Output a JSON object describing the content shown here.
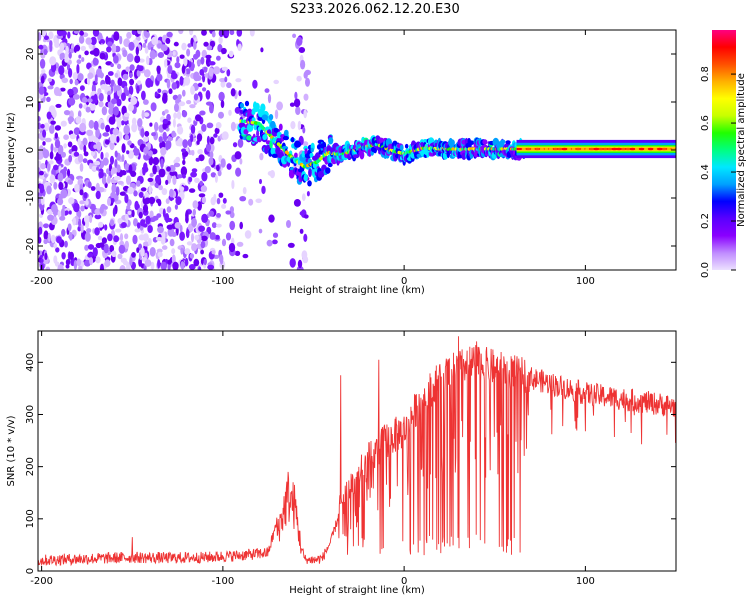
{
  "title": "S233.2026.062.12.20.E30",
  "chart_data": [
    {
      "type": "heatmap",
      "name": "spectrogram",
      "xlabel": "Height of straight line (km)",
      "ylabel": "Frequency (Hz)",
      "xlim": [
        -202,
        150
      ],
      "ylim": [
        -25,
        25
      ],
      "xticks": [
        "-200",
        "-100",
        "0",
        "100"
      ],
      "xtick_values": [
        -200,
        -100,
        0,
        100
      ],
      "yticks": [
        "-20",
        "-10",
        "0",
        "10",
        "20"
      ],
      "ytick_values": [
        -20,
        -10,
        0,
        10,
        20
      ],
      "colorbar": {
        "label": "Normalized spectral amplitude",
        "range": [
          0,
          0.98
        ],
        "ticks": [
          "0.0",
          "0.2",
          "0.4",
          "0.6",
          "0.8"
        ],
        "tick_values": [
          0.0,
          0.2,
          0.4,
          0.6,
          0.8
        ],
        "colors": [
          "#ece0ff",
          "#c08cff",
          "#8a00ff",
          "#5a00ff",
          "#0000ff",
          "#00a0ff",
          "#00e8ff",
          "#00ff80",
          "#20ff00",
          "#c8ff00",
          "#ffff00",
          "#ffb000",
          "#ff5000",
          "#ff0000",
          "#ff0080"
        ]
      },
      "signal_ridge": {
        "x": [
          -88,
          -80,
          -70,
          -62,
          -55,
          -48,
          -42,
          -35,
          -25,
          -15,
          -8,
          0,
          10,
          25,
          40,
          65,
          150
        ],
        "y": [
          6,
          5.5,
          1.5,
          -1.5,
          -3.5,
          -2.5,
          -0.5,
          -1.0,
          0.3,
          1.2,
          0.0,
          -0.8,
          0.4,
          0.2,
          0.2,
          0.2,
          0.2
        ]
      }
    },
    {
      "type": "line",
      "name": "snr",
      "xlabel": "Height of straight line (km)",
      "ylabel": "SNR (10 * v/v)",
      "xlim": [
        -202,
        150
      ],
      "ylim": [
        0,
        460
      ],
      "xticks": [
        "-200",
        "-100",
        "0",
        "100"
      ],
      "xtick_values": [
        -200,
        -100,
        0,
        100
      ],
      "yticks": [
        "0",
        "100",
        "200",
        "300",
        "400"
      ],
      "ytick_values": [
        0,
        100,
        200,
        300,
        400
      ],
      "series": [
        {
          "name": "SNR",
          "color": "#ee3333",
          "x": [
            -202,
            -190,
            -170,
            -150,
            -130,
            -110,
            -90,
            -75,
            -68,
            -64,
            -60,
            -57,
            -55,
            -50,
            -45,
            -40,
            -35,
            -30,
            -25,
            -20,
            -15,
            -10,
            -5,
            0,
            5,
            10,
            15,
            20,
            25,
            30,
            35,
            40,
            45,
            50,
            55,
            60,
            65,
            70,
            80,
            90,
            100,
            110,
            120,
            130,
            140,
            150
          ],
          "values": [
            20,
            22,
            24,
            26,
            25,
            26,
            30,
            35,
            120,
            180,
            150,
            60,
            30,
            20,
            25,
            60,
            120,
            160,
            180,
            210,
            230,
            250,
            260,
            270,
            300,
            330,
            350,
            370,
            380,
            390,
            395,
            400,
            395,
            390,
            385,
            380,
            375,
            370,
            360,
            350,
            340,
            335,
            330,
            325,
            320,
            315
          ]
        }
      ],
      "peaks": [
        {
          "x": -150,
          "y": 65
        },
        {
          "x": -35,
          "y": 375
        },
        {
          "x": -14,
          "y": 405
        },
        {
          "x": 30,
          "y": 450
        },
        {
          "x": 40,
          "y": 440
        }
      ]
    }
  ]
}
